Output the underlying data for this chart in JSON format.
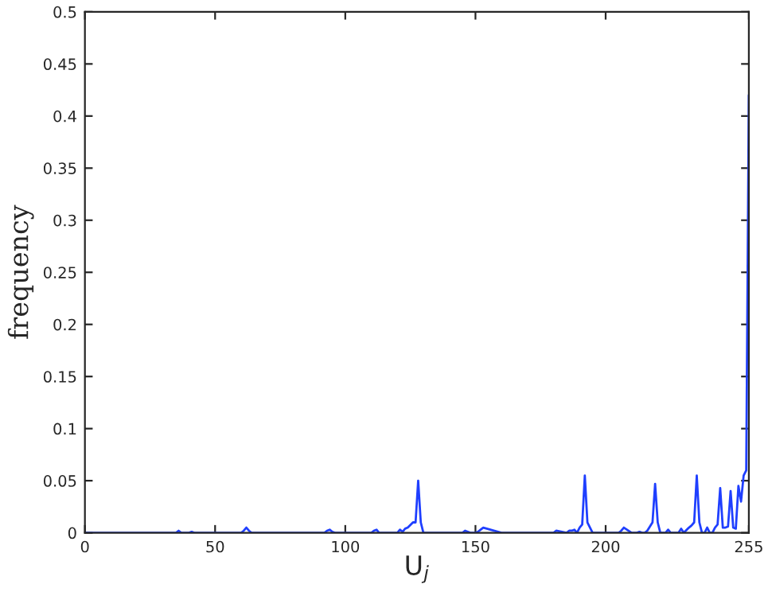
{
  "chart_data": {
    "type": "line",
    "xlabel": "U$_{j}$",
    "ylabel": "frequency",
    "xlim": [
      0,
      255
    ],
    "ylim": [
      0,
      0.5
    ],
    "xticks": [
      0,
      50,
      100,
      150,
      200,
      255
    ],
    "yticks": [
      0,
      0.05,
      0.1,
      0.15,
      0.2,
      0.25,
      0.3,
      0.35,
      0.4,
      0.45,
      0.5
    ],
    "grid": false,
    "legend": false,
    "series": [
      {
        "color": "#1f3fff",
        "x": [
          0,
          35,
          36,
          37,
          40,
          41,
          42,
          60,
          61,
          62,
          63,
          64,
          92,
          93,
          94,
          95,
          96,
          105,
          110,
          111,
          112,
          113,
          118,
          120,
          121,
          122,
          123,
          124,
          126,
          127,
          128,
          129,
          130,
          131,
          145,
          146,
          148,
          150,
          151,
          152,
          153,
          160,
          170,
          180,
          181,
          185,
          186,
          187,
          188,
          189,
          190,
          191,
          192,
          193,
          195,
          200,
          205,
          206,
          207,
          210,
          212,
          213,
          214,
          215,
          216,
          217,
          218,
          219,
          220,
          221,
          222,
          223,
          224,
          225,
          228,
          229,
          230,
          232,
          233,
          234,
          235,
          236,
          237,
          238,
          239,
          240,
          241,
          242,
          243,
          244,
          245,
          246,
          247,
          248,
          249,
          250,
          251,
          252,
          253,
          254,
          255
        ],
        "values": [
          0,
          0,
          0.002,
          0,
          0,
          0.001,
          0,
          0,
          0.002,
          0.005,
          0.002,
          0,
          0,
          0.002,
          0.003,
          0.001,
          0,
          0,
          0,
          0.002,
          0.003,
          0,
          0,
          0,
          0.003,
          0.001,
          0.004,
          0.005,
          0.01,
          0.01,
          0.05,
          0.01,
          0,
          0,
          0,
          0.002,
          0,
          0,
          0.001,
          0.003,
          0.005,
          0,
          0,
          0,
          0.002,
          0,
          0.002,
          0.002,
          0.003,
          0,
          0.005,
          0.008,
          0.055,
          0.01,
          0,
          0,
          0,
          0.002,
          0.005,
          0,
          0,
          0.001,
          0,
          0,
          0.002,
          0.006,
          0.01,
          0.047,
          0.01,
          0,
          0,
          0,
          0.003,
          0,
          0,
          0.004,
          0,
          0.005,
          0.007,
          0.01,
          0.055,
          0.01,
          0,
          0,
          0.005,
          0,
          0,
          0.005,
          0.008,
          0.043,
          0.005,
          0.005,
          0.006,
          0.04,
          0.005,
          0.004,
          0.045,
          0.03,
          0.055,
          0.06,
          0.42
        ]
      }
    ]
  }
}
